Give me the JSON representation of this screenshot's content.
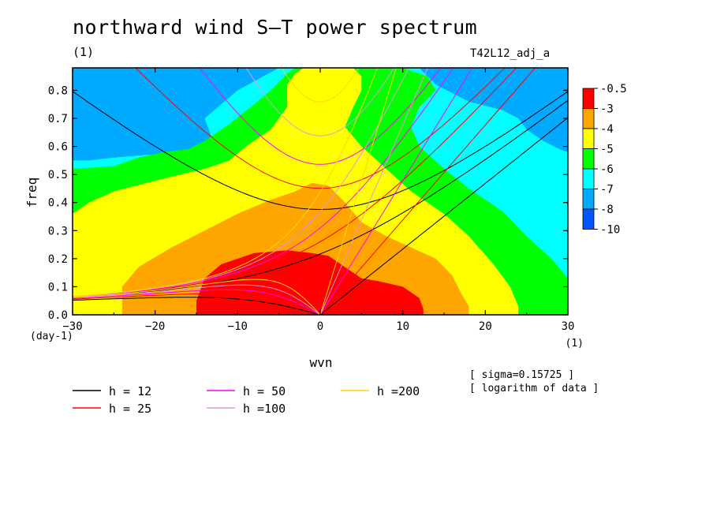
{
  "title": "northward wind S–T power spectrum",
  "subtitle": "(1)",
  "run_label": "T42L12_adj_a",
  "notes": [
    "[ sigma=0.15725 ]",
    "[ logarithm of data ]"
  ],
  "chart_data": {
    "type": "heatmap",
    "title": "northward wind S–T power spectrum",
    "xlabel": "wvn",
    "xunit": "(1)",
    "ylabel": "freq",
    "yunit": "(day-1)",
    "xlim": [
      -30,
      30
    ],
    "ylim": [
      0.0,
      0.88
    ],
    "xticks": [
      -30,
      -20,
      -10,
      0,
      10,
      20,
      30
    ],
    "yticks": [
      0.0,
      0.1,
      0.2,
      0.3,
      0.4,
      0.5,
      0.6,
      0.7,
      0.8
    ],
    "xtick_labels": [
      "−30",
      "−20",
      "−10",
      "0",
      "10",
      "20",
      "30"
    ],
    "ytick_labels": [
      "0.0",
      "0.1",
      "0.2",
      "0.3",
      "0.4",
      "0.5",
      "0.6",
      "0.7",
      "0.8"
    ],
    "colorbar": {
      "levels": [
        "-0.5",
        "-3",
        "-4",
        "-5",
        "-6",
        "-7",
        "-8",
        "-10"
      ],
      "colors": [
        "#ff0000",
        "#ffa500",
        "#ffff00",
        "#00ff00",
        "#00ffff",
        "#00aaff",
        "#0055ff"
      ]
    },
    "fill_order": [
      "#0055ff",
      "#00aaff",
      "#00ffff",
      "#00ff00",
      "#ffff00",
      "#ffa500",
      "#ff0000"
    ],
    "dispersion_curves": [
      {
        "name": "h = 12",
        "h": 12,
        "color": "#000000"
      },
      {
        "name": "h = 25",
        "h": 25,
        "color": "#ff0000"
      },
      {
        "name": "h = 50",
        "h": 50,
        "color": "#ff00ff"
      },
      {
        "name": "h =100",
        "h": 100,
        "color": "#dd99dd"
      },
      {
        "name": "h =200",
        "h": 200,
        "color": "#ffd700"
      }
    ]
  }
}
